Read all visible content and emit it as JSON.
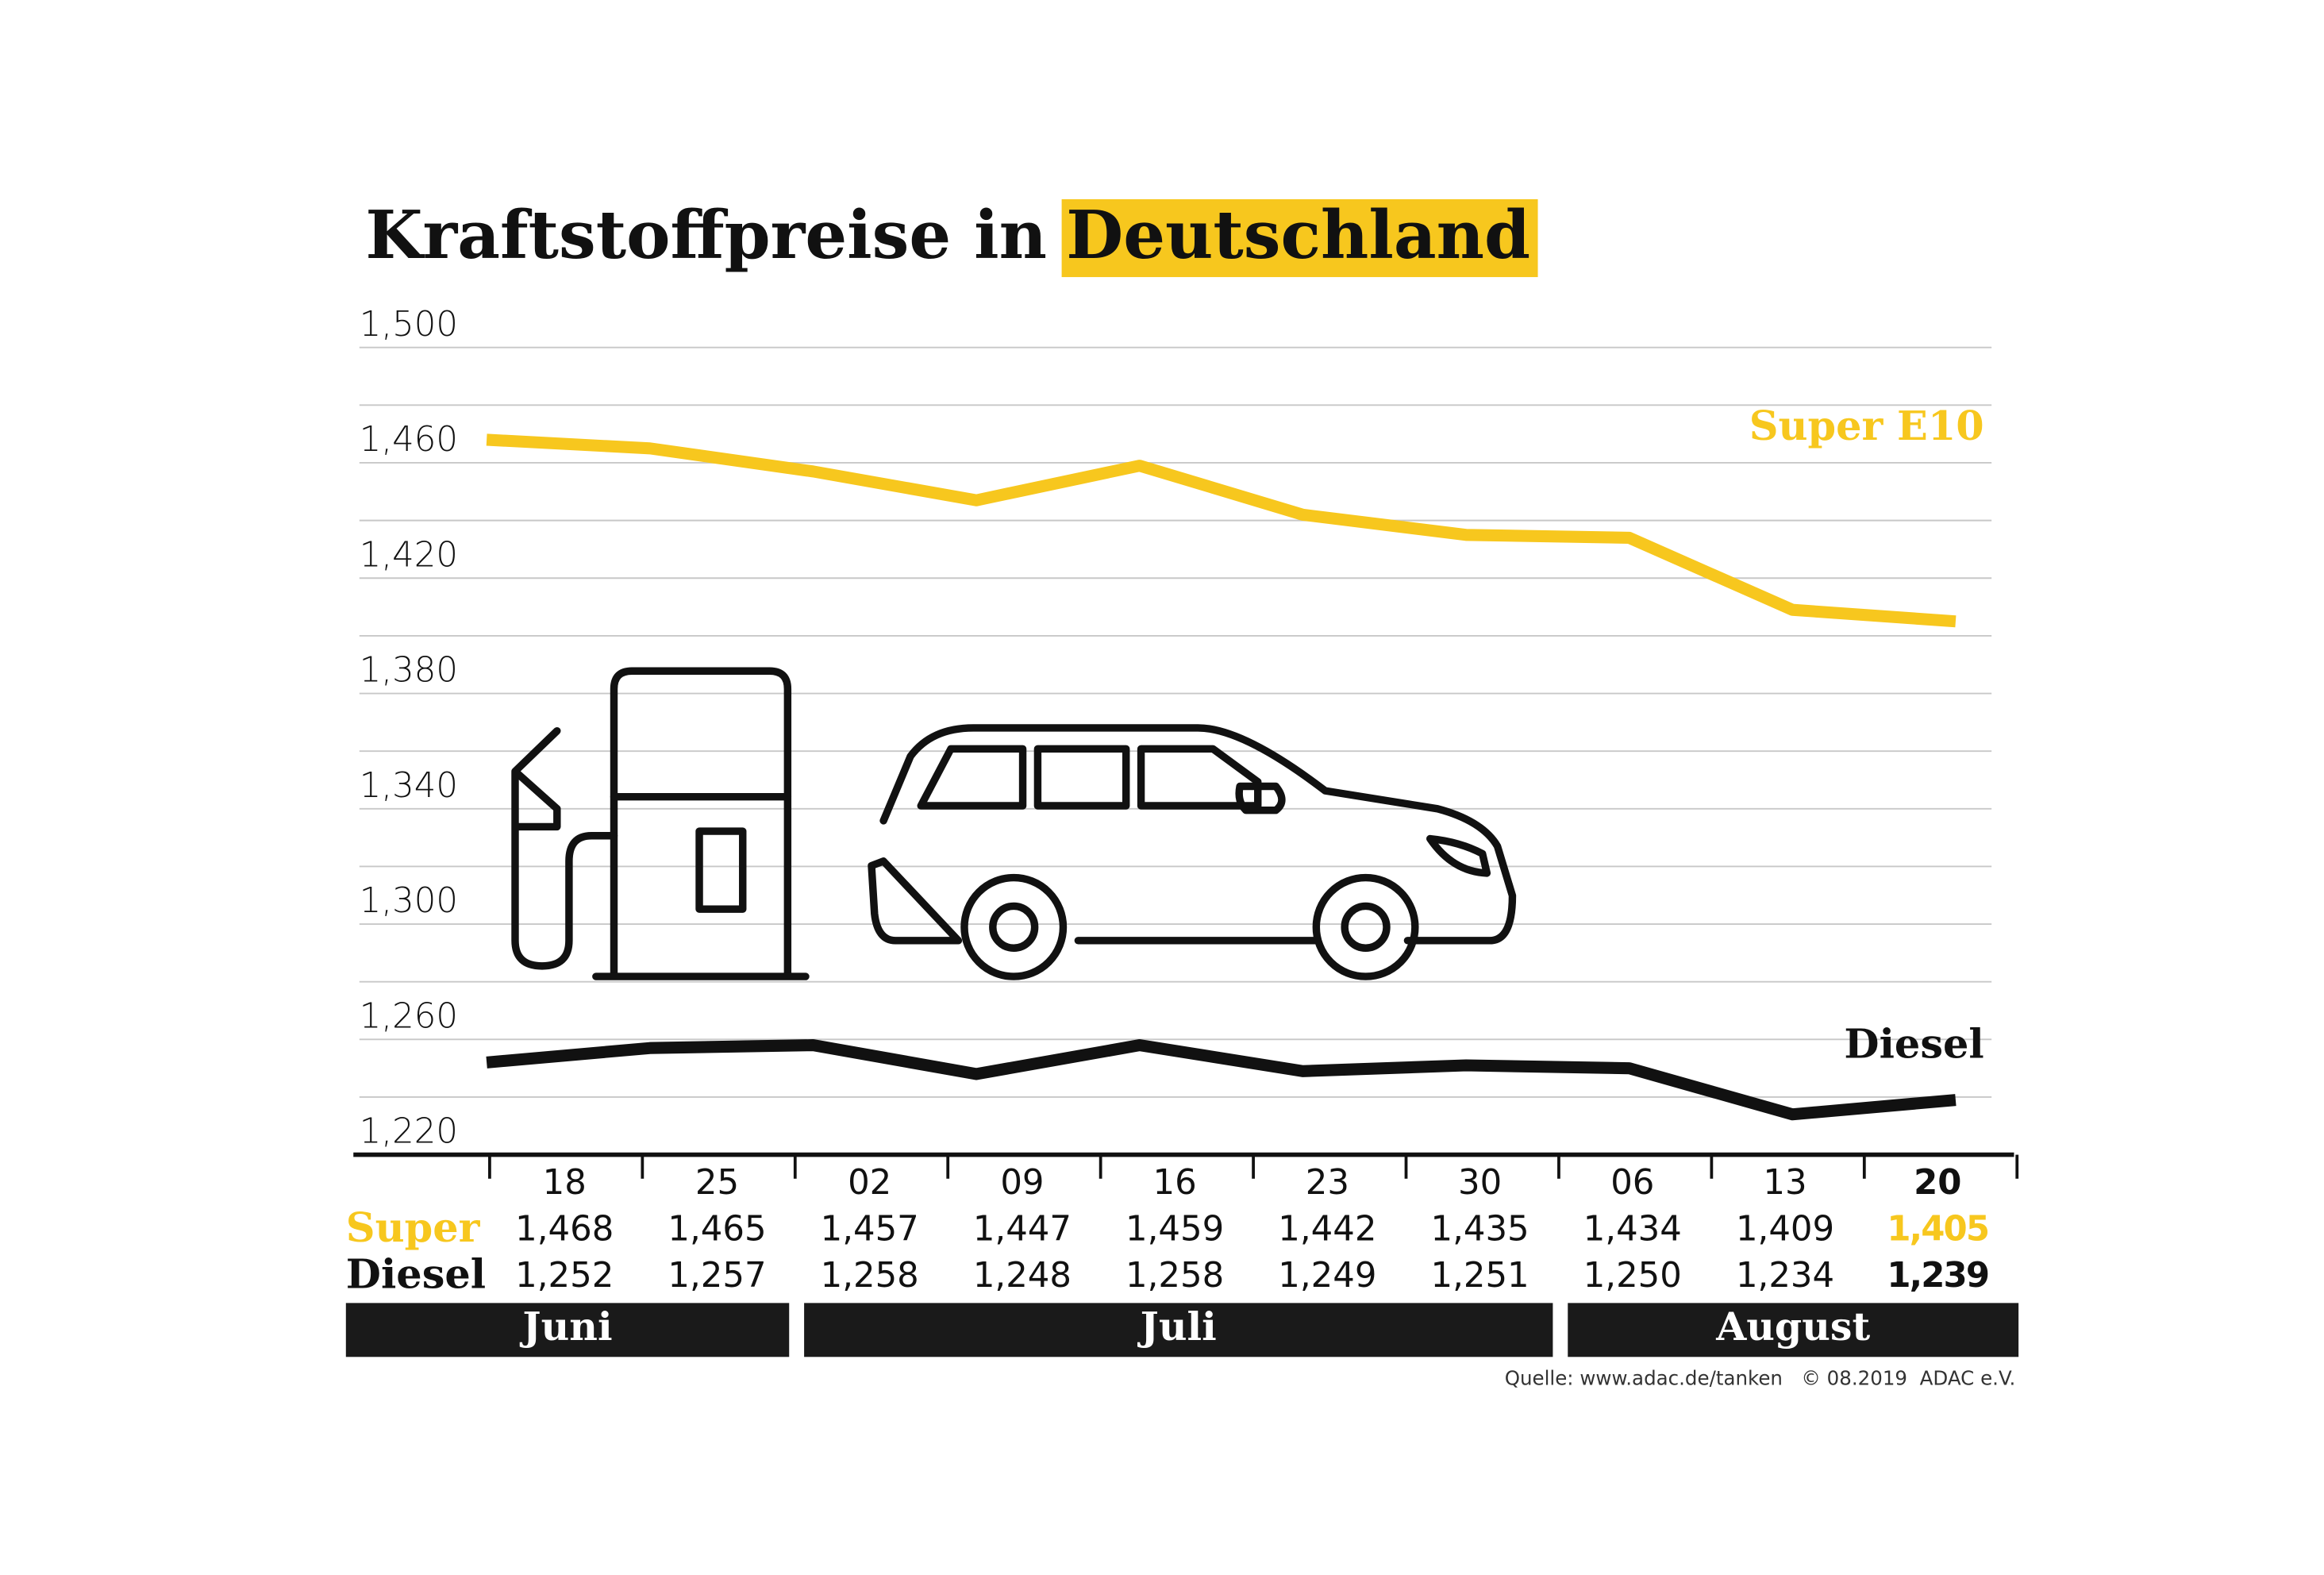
{
  "chart_data": {
    "type": "line",
    "title": "Kraftstoffpreise in",
    "title_highlight": "Deutschland",
    "categories": [
      "18",
      "25",
      "02",
      "09",
      "16",
      "23",
      "30",
      "06",
      "13",
      "20"
    ],
    "months": [
      {
        "name": "Juni",
        "start": 0,
        "end": 1
      },
      {
        "name": "Juli",
        "start": 2,
        "end": 6
      },
      {
        "name": "August",
        "start": 7,
        "end": 9
      }
    ],
    "series": [
      {
        "name": "Super E10",
        "table_label": "Super",
        "color": "#f7c71e",
        "values": [
          1.468,
          1.465,
          1.457,
          1.447,
          1.459,
          1.442,
          1.435,
          1.434,
          1.409,
          1.405
        ],
        "value_labels": [
          "1,468",
          "1,465",
          "1,457",
          "1,447",
          "1,459",
          "1,442",
          "1,435",
          "1,434",
          "1,409",
          "1,405"
        ]
      },
      {
        "name": "Diesel",
        "table_label": "Diesel",
        "color": "#111111",
        "values": [
          1.252,
          1.257,
          1.258,
          1.248,
          1.258,
          1.249,
          1.251,
          1.25,
          1.234,
          1.239
        ],
        "value_labels": [
          "1,252",
          "1,257",
          "1,258",
          "1,248",
          "1,258",
          "1,249",
          "1,251",
          "1,250",
          "1,234",
          "1,239"
        ]
      }
    ],
    "ylim": [
      1.22,
      1.5
    ],
    "yticks": [
      {
        "value": 1.5,
        "label": "1,500"
      },
      {
        "value": 1.46,
        "label": "1,460"
      },
      {
        "value": 1.42,
        "label": "1,420"
      },
      {
        "value": 1.38,
        "label": "1,380"
      },
      {
        "value": 1.34,
        "label": "1,340"
      },
      {
        "value": 1.3,
        "label": "1,300"
      },
      {
        "value": 1.26,
        "label": "1,260"
      },
      {
        "value": 1.22,
        "label": "1,220"
      }
    ],
    "minor_grid": [
      1.48,
      1.44,
      1.4,
      1.36,
      1.32,
      1.28,
      1.24
    ],
    "grid": true,
    "highlight_last": true,
    "source": "Quelle: www.adac.de/tanken   © 08.2019  ADAC e.V."
  }
}
